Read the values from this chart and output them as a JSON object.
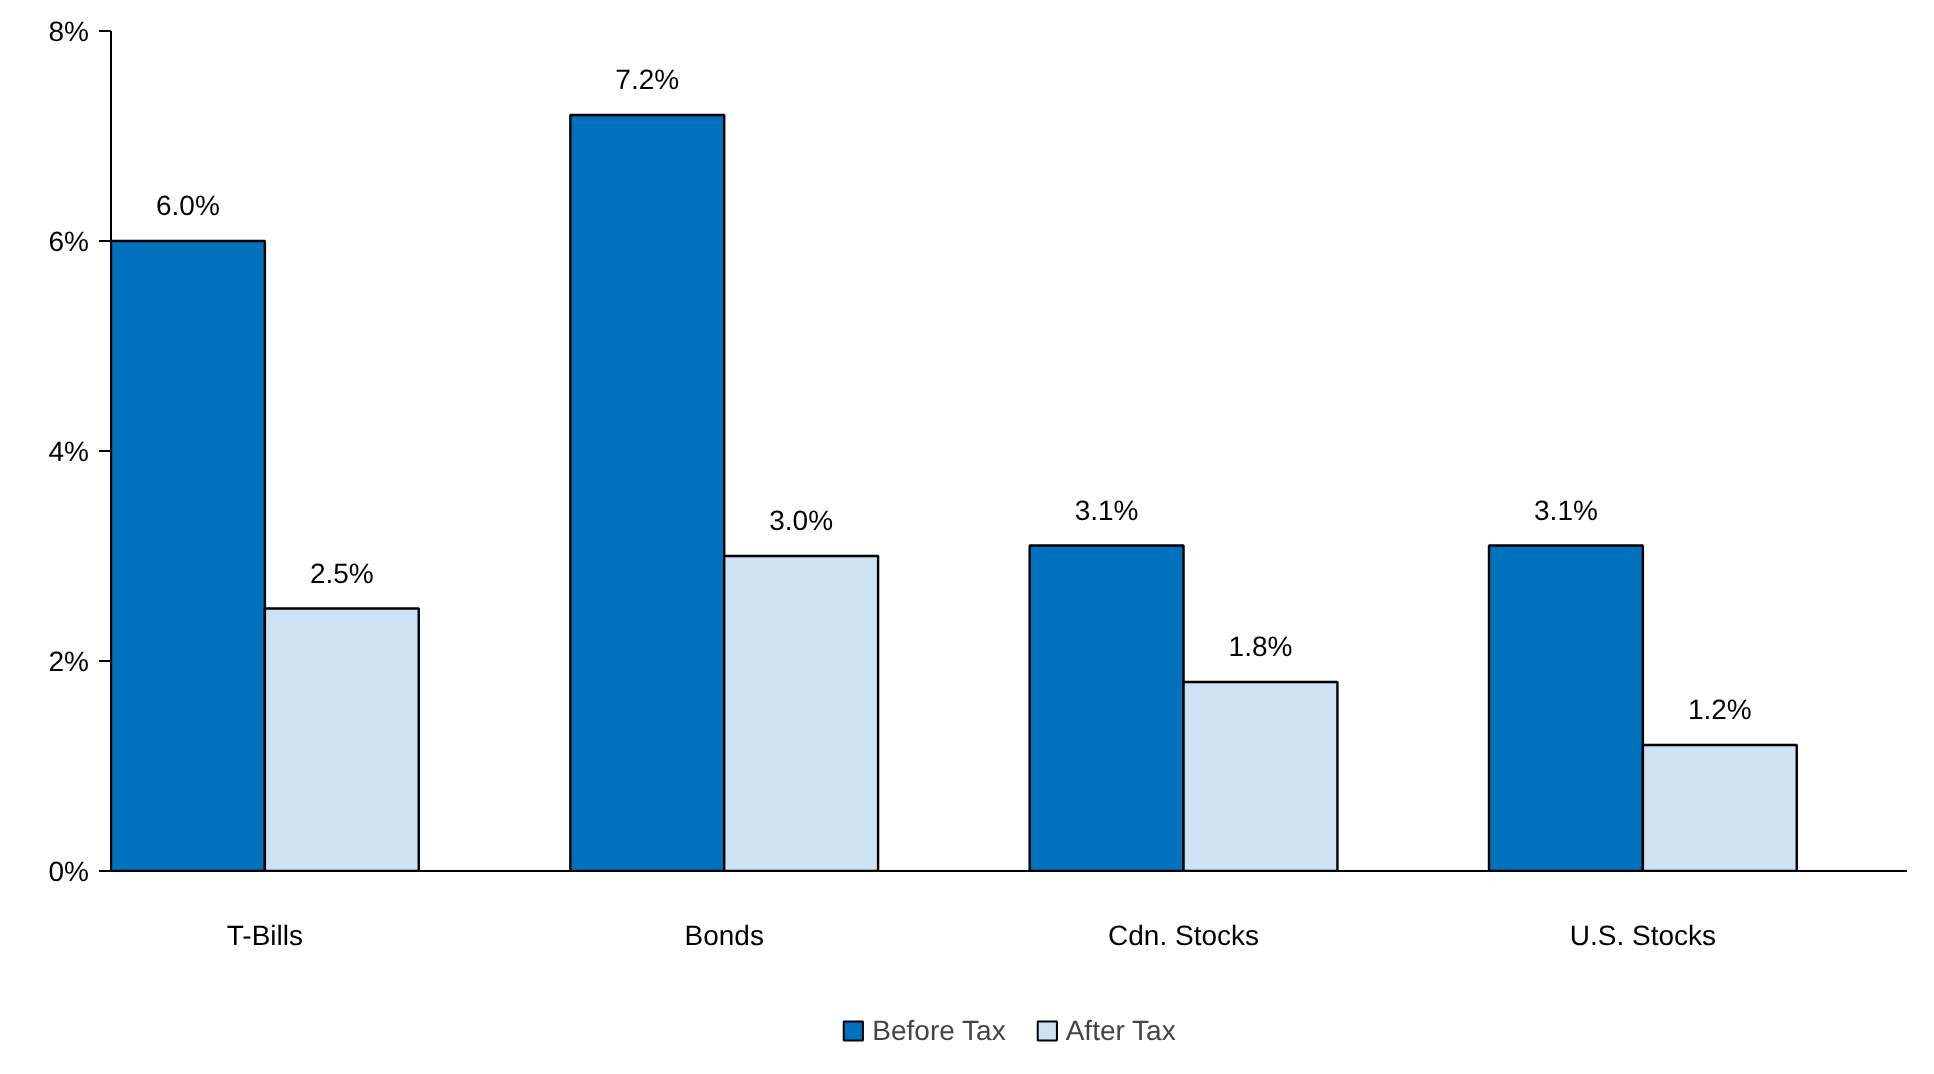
{
  "chart_data": {
    "type": "bar",
    "categories": [
      "T-Bills",
      "Bonds",
      "Cdn. Stocks",
      "U.S. Stocks"
    ],
    "series": [
      {
        "name": "Before Tax",
        "color": "#0071bc",
        "values": [
          6.0,
          7.2,
          3.1,
          3.1
        ],
        "value_labels": [
          "6.0%",
          "7.2%",
          "3.1%",
          "3.1%"
        ]
      },
      {
        "name": "After Tax",
        "color": "#cde3f3",
        "values": [
          2.5,
          3.0,
          1.8,
          1.2
        ],
        "value_labels": [
          "2.5%",
          "3.0%",
          "1.8%",
          "1.2%"
        ]
      }
    ],
    "ylim": [
      0,
      8
    ],
    "yticks": [
      {
        "value": 0,
        "label": "0%"
      },
      {
        "value": 2,
        "label": "2%"
      },
      {
        "value": 4,
        "label": "4%"
      },
      {
        "value": 6,
        "label": "6%"
      },
      {
        "value": 8,
        "label": "8%"
      }
    ],
    "grid": false,
    "legend": "bottom"
  }
}
